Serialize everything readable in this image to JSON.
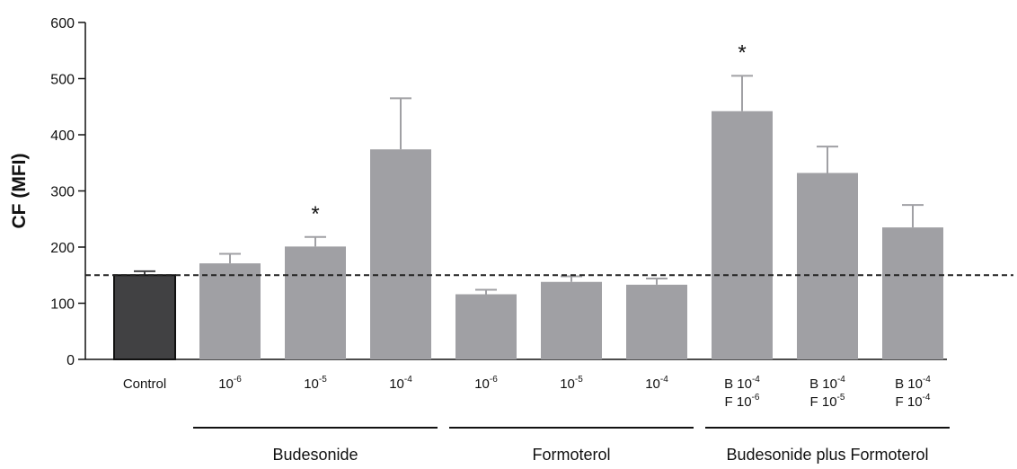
{
  "chart_data": {
    "type": "bar",
    "ylabel": "CF (MFI)",
    "ylim": [
      0,
      600
    ],
    "yticks": [
      0,
      100,
      200,
      300,
      400,
      500,
      600
    ],
    "reference_line": 150,
    "grid": false,
    "colors": {
      "control": "#414143",
      "treatment": "#a0a0a4",
      "reference_line": "#222222"
    },
    "bars": [
      {
        "label": [
          {
            "t": "Control"
          }
        ],
        "value": 150,
        "error": 7,
        "significant": false,
        "kind": "control"
      },
      {
        "label": [
          {
            "t": "10",
            "sup": "-6"
          }
        ],
        "value": 171,
        "error": 17,
        "significant": false,
        "kind": "treatment"
      },
      {
        "label": [
          {
            "t": "10",
            "sup": "-5"
          }
        ],
        "value": 201,
        "error": 17,
        "significant": true,
        "kind": "treatment"
      },
      {
        "label": [
          {
            "t": "10",
            "sup": "-4"
          }
        ],
        "value": 374,
        "error": 91,
        "significant": false,
        "kind": "treatment"
      },
      {
        "label": [
          {
            "t": "10",
            "sup": "-6"
          }
        ],
        "value": 116,
        "error": 8,
        "significant": false,
        "kind": "treatment"
      },
      {
        "label": [
          {
            "t": "10",
            "sup": "-5"
          }
        ],
        "value": 138,
        "error": 10,
        "significant": false,
        "kind": "treatment"
      },
      {
        "label": [
          {
            "t": "10",
            "sup": "-4"
          }
        ],
        "value": 133,
        "error": 11,
        "significant": false,
        "kind": "treatment"
      },
      {
        "label": [
          {
            "t": "B 10",
            "sup": "-4"
          },
          {
            "t": "F 10",
            "sup": "-6"
          }
        ],
        "value": 442,
        "error": 63,
        "significant": true,
        "kind": "treatment"
      },
      {
        "label": [
          {
            "t": "B 10",
            "sup": "-4"
          },
          {
            "t": "F 10",
            "sup": "-5"
          }
        ],
        "value": 332,
        "error": 47,
        "significant": false,
        "kind": "treatment"
      },
      {
        "label": [
          {
            "t": "B 10",
            "sup": "-4"
          },
          {
            "t": "F 10",
            "sup": "-4"
          }
        ],
        "value": 235,
        "error": 40,
        "significant": false,
        "kind": "treatment"
      }
    ],
    "significance_marker": "*",
    "groups": [
      {
        "name": "Budesonide",
        "from": 1,
        "to": 3
      },
      {
        "name": "Formoterol",
        "from": 4,
        "to": 6
      },
      {
        "name": "Budesonide plus Formoterol",
        "from": 7,
        "to": 9
      }
    ]
  }
}
